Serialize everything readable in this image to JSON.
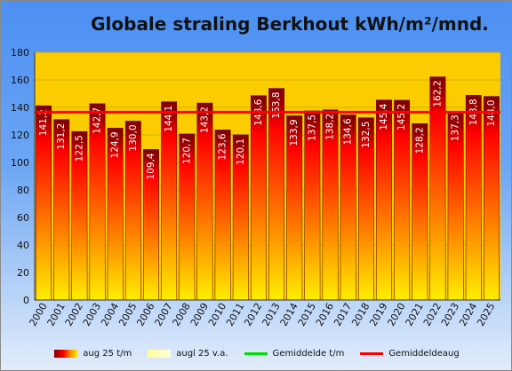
{
  "chart_data": {
    "type": "bar",
    "title": "Globale straling Berkhout kWh/m²/mnd.",
    "categories": [
      "2000",
      "2001",
      "2002",
      "2003",
      "2004",
      "2005",
      "2006",
      "2007",
      "2008",
      "2009",
      "2010",
      "2011",
      "2012",
      "2013",
      "2014",
      "2015",
      "2016",
      "2017",
      "2018",
      "2019",
      "2020",
      "2021",
      "2022",
      "2023",
      "2024",
      "2025"
    ],
    "series": [
      {
        "name": "aug 25 t/m",
        "values": [
          141.2,
          131.2,
          122.5,
          142.7,
          124.9,
          130.0,
          109.4,
          144.1,
          120.7,
          143.2,
          123.6,
          120.1,
          148.6,
          153.8,
          133.9,
          137.5,
          138.2,
          134.6,
          132.5,
          145.4,
          145.2,
          128.2,
          162.2,
          137.3,
          148.8,
          148.0
        ],
        "labels": [
          "141,2",
          "131,2",
          "122,5",
          "142,7",
          "124,9",
          "130,0",
          "109,4",
          "144,1",
          "120,7",
          "143,2",
          "123,6",
          "120,1",
          "148,6",
          "153,8",
          "133,9",
          "137,5",
          "138,2",
          "134,6",
          "132,5",
          "145,4",
          "145,2",
          "128,2",
          "162,2",
          "137,3",
          "148,8",
          "148,0"
        ]
      }
    ],
    "average_line": {
      "name": "Gemiddeldeaug",
      "value": 136.5,
      "color": "#ff0000"
    },
    "ylim": [
      0,
      180
    ],
    "yticks": [
      0,
      20,
      40,
      60,
      80,
      100,
      120,
      140,
      160,
      180
    ],
    "grid": true,
    "legend": {
      "position": "bottom",
      "items": [
        {
          "label": "aug 25 t/m",
          "kind": "bar-gradient"
        },
        {
          "label": "augl 25 v.a.",
          "kind": "bar-pale"
        },
        {
          "label": "Gemiddelde t/m",
          "kind": "line",
          "color": "#00dd00"
        },
        {
          "label": "Gemiddeldeaug",
          "kind": "line",
          "color": "#ff0000"
        }
      ]
    }
  }
}
